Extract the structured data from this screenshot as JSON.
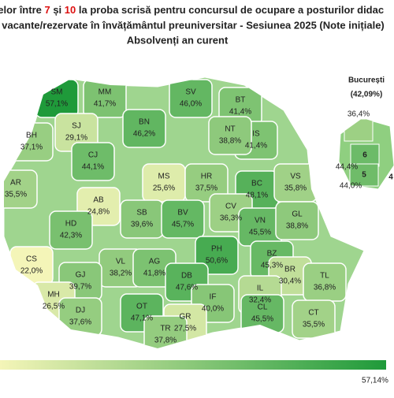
{
  "header": {
    "title_parts": [
      "telor între ",
      "7",
      " și ",
      "10",
      " la proba scrisă pentru concursul de ocupare a posturilor didac"
    ],
    "line2": "vacante/rezervate în învățământul preuniversitar - Sesiunea 2025 (Note inițiale)",
    "line3": "Absolvenți an curent"
  },
  "map": {
    "counties": [
      {
        "code": "SM",
        "value": 57.1,
        "value_label": "57,1%"
      },
      {
        "code": "MM",
        "value": 41.7,
        "value_label": "41,7%"
      },
      {
        "code": "BT",
        "value": 41.4,
        "value_label": "41,4%"
      },
      {
        "code": "SV",
        "value": 46.0,
        "value_label": "46,0%"
      },
      {
        "code": "SJ",
        "value": 29.1,
        "value_label": "29,1%"
      },
      {
        "code": "BN",
        "value": 46.2,
        "value_label": "46,2%"
      },
      {
        "code": "BH",
        "value": 37.1,
        "value_label": "37,1%"
      },
      {
        "code": "CJ",
        "value": 44.1,
        "value_label": "44,1%"
      },
      {
        "code": "IS",
        "value": 41.4,
        "value_label": "41,4%"
      },
      {
        "code": "NT",
        "value": 38.8,
        "value_label": "38,8%"
      },
      {
        "code": "MS",
        "value": 25.6,
        "value_label": "25,6%"
      },
      {
        "code": "HR",
        "value": 37.5,
        "value_label": "37,5%"
      },
      {
        "code": "AR",
        "value": 35.5,
        "value_label": "35,5%"
      },
      {
        "code": "AB",
        "value": 24.8,
        "value_label": "24,8%"
      },
      {
        "code": "BC",
        "value": 48.1,
        "value_label": "48,1%"
      },
      {
        "code": "VS",
        "value": 35.8,
        "value_label": "35,8%"
      },
      {
        "code": "HD",
        "value": 42.3,
        "value_label": "42,3%"
      },
      {
        "code": "SB",
        "value": 39.6,
        "value_label": "39,6%"
      },
      {
        "code": "BV",
        "value": 45.7,
        "value_label": "45,7%"
      },
      {
        "code": "CV",
        "value": 36.3,
        "value_label": "36,3%"
      },
      {
        "code": "VN",
        "value": 45.5,
        "value_label": "45,5%"
      },
      {
        "code": "GL",
        "value": 38.8,
        "value_label": "38,8%"
      },
      {
        "code": "CS",
        "value": 22.0,
        "value_label": "22,0%"
      },
      {
        "code": "VL",
        "value": 38.2,
        "value_label": "38,2%"
      },
      {
        "code": "AG",
        "value": 41.8,
        "value_label": "41,8%"
      },
      {
        "code": "PH",
        "value": 50.6,
        "value_label": "50,6%"
      },
      {
        "code": "BZ",
        "value": 45.3,
        "value_label": "45,3%"
      },
      {
        "code": "BR",
        "value": 30.4,
        "value_label": "30,4%"
      },
      {
        "code": "GJ",
        "value": 39.7,
        "value_label": "39,7%"
      },
      {
        "code": "DB",
        "value": 47.6,
        "value_label": "47,6%"
      },
      {
        "code": "TL",
        "value": 36.8,
        "value_label": "36,8%"
      },
      {
        "code": "MH",
        "value": 26.5,
        "value_label": "26,5%"
      },
      {
        "code": "IL",
        "value": 32.4,
        "value_label": "32,4%"
      },
      {
        "code": "IF",
        "value": 40.0,
        "value_label": "40,0%"
      },
      {
        "code": "DJ",
        "value": 37.6,
        "value_label": "37,6%"
      },
      {
        "code": "OT",
        "value": 47.1,
        "value_label": "47,1%"
      },
      {
        "code": "CL",
        "value": 45.5,
        "value_label": "45,5%"
      },
      {
        "code": "GR",
        "value": 27.5,
        "value_label": "27,5%"
      },
      {
        "code": "CT",
        "value": 35.5,
        "value_label": "35,5%"
      },
      {
        "code": "TR",
        "value": 37.8,
        "value_label": "37,8%"
      }
    ],
    "bucharest": {
      "name": "București",
      "value": 42.09,
      "value_label": "(42,09%)",
      "sectors": [
        {
          "value": 36.4,
          "value_label": "36,4%"
        },
        {
          "number": "6",
          "value": 44.4,
          "value_label": "44,4%"
        },
        {
          "number": "5",
          "value": 44.0,
          "value_label": "44,0%"
        },
        {
          "number": "4"
        }
      ]
    },
    "legend": {
      "min": 22.0,
      "max": 57.14,
      "max_label": "57,14%"
    }
  }
}
